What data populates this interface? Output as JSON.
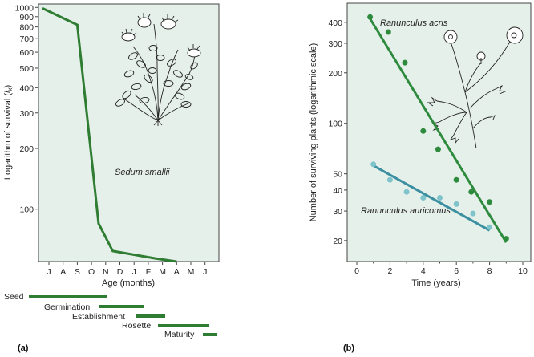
{
  "chart_data": [
    {
      "panel_label": "(a)",
      "type": "line",
      "ylabel": "Logarithm of survival (lx)",
      "xlabel": "Age (months)",
      "x_tick_labels": [
        "J",
        "A",
        "S",
        "O",
        "N",
        "D",
        "J",
        "F",
        "M",
        "A",
        "M",
        "J"
      ],
      "y_scale": "log",
      "y_ticks": [
        100,
        200,
        300,
        400,
        500,
        600,
        700,
        800,
        900,
        1000
      ],
      "y_tick_labels": [
        "100",
        "200",
        "300",
        "400",
        "500",
        "600",
        "700",
        "800",
        "900",
        "1000"
      ],
      "ylim": [
        55,
        1040
      ],
      "annotation": "Sedum smallii",
      "series": [
        {
          "x": [
            "J",
            "S",
            "N",
            "D",
            "M",
            "A"
          ],
          "x_index": [
            0,
            2.5,
            4.0,
            5.0,
            8.0,
            9.0
          ],
          "y": [
            990,
            820,
            85,
            62,
            57,
            55
          ]
        }
      ],
      "stages": [
        {
          "label": "Seed",
          "start": "Jun",
          "end": "Oct"
        },
        {
          "label": "Germination",
          "start": "Oct",
          "end": "Jan"
        },
        {
          "label": "Establishment",
          "start": "Jan",
          "end": "Mar"
        },
        {
          "label": "Rosette",
          "start": "Mar",
          "end": "May"
        },
        {
          "label": "Maturity",
          "start": "May",
          "end": "Jun"
        }
      ]
    },
    {
      "panel_label": "(b)",
      "type": "scatter",
      "ylabel": "Number of surviving plants (logarithmic scale)",
      "xlabel": "Time (years)",
      "x_ticks": [
        0,
        2,
        4,
        6,
        8,
        10
      ],
      "x_tick_labels": [
        "0",
        "2",
        "4",
        "6",
        "8",
        "10"
      ],
      "xlim": [
        0,
        10.5
      ],
      "y_scale": "log",
      "y_ticks": [
        20,
        30,
        40,
        50,
        100,
        200,
        300,
        400
      ],
      "y_tick_labels": [
        "20",
        "30",
        "40",
        "50",
        "100",
        "200",
        "300",
        "400"
      ],
      "ylim": [
        15,
        520
      ],
      "series": [
        {
          "name": "Ranunculus acris",
          "color": "#2e8b3e",
          "points_x": [
            0.8,
            1.9,
            2.9,
            4.0,
            4.9,
            6.0,
            6.9,
            8.0,
            9.0
          ],
          "points_y": [
            430,
            350,
            230,
            90,
            70,
            46,
            39,
            34,
            20.5
          ],
          "fit_x": [
            0.8,
            9.0
          ],
          "fit_y": [
            420,
            19.5
          ]
        },
        {
          "name": "Ranunculus auricomus",
          "color": "#3a8fa0",
          "points_x": [
            1.0,
            2.0,
            3.0,
            4.0,
            5.0,
            6.0,
            7.0,
            8.0
          ],
          "points_y": [
            57,
            46,
            39,
            36,
            36,
            33,
            29,
            24
          ],
          "fit_x": [
            1.0,
            8.0
          ],
          "fit_y": [
            56,
            23
          ]
        }
      ]
    }
  ]
}
